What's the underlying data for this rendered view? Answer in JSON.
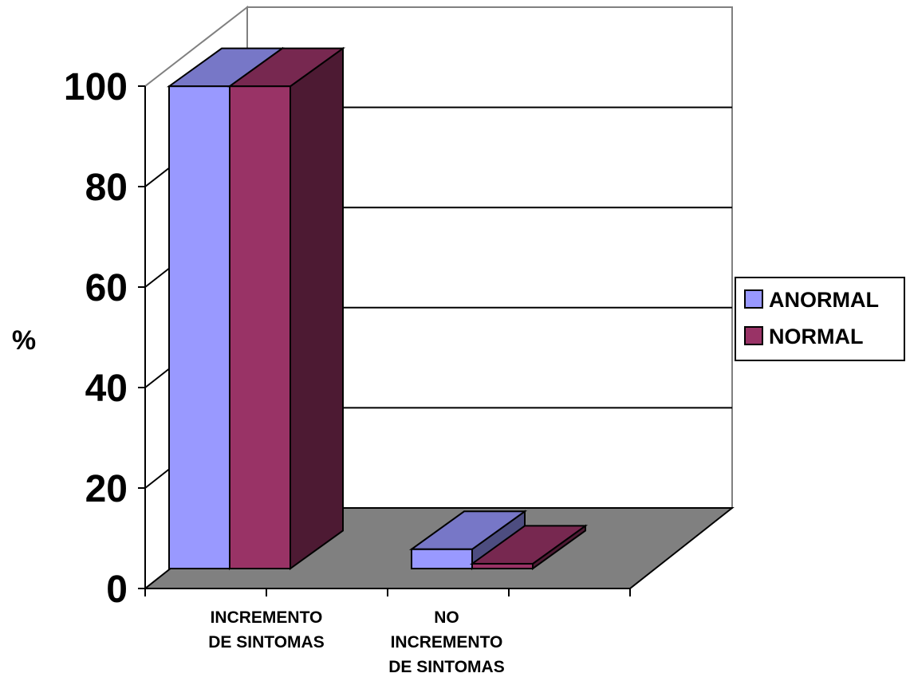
{
  "chart_data": {
    "type": "bar",
    "title": "",
    "xlabel": "",
    "ylabel": "%",
    "ylim": [
      0,
      100
    ],
    "yticks": [
      "0",
      "20",
      "40",
      "60",
      "80",
      "100"
    ],
    "categories": [
      [
        "INCREMENTO",
        "DE SINTOMAS"
      ],
      [
        "NO",
        "INCREMENTO",
        "DE SINTOMAS"
      ]
    ],
    "series": [
      {
        "name": "ANORMAL",
        "values": [
          100,
          4
        ],
        "color": "#9999FF"
      },
      {
        "name": "NORMAL",
        "values": [
          100,
          1
        ],
        "color": "#993366"
      }
    ],
    "legend_position": "right",
    "grid": true,
    "style": "3d",
    "floor_color": "#808080"
  }
}
